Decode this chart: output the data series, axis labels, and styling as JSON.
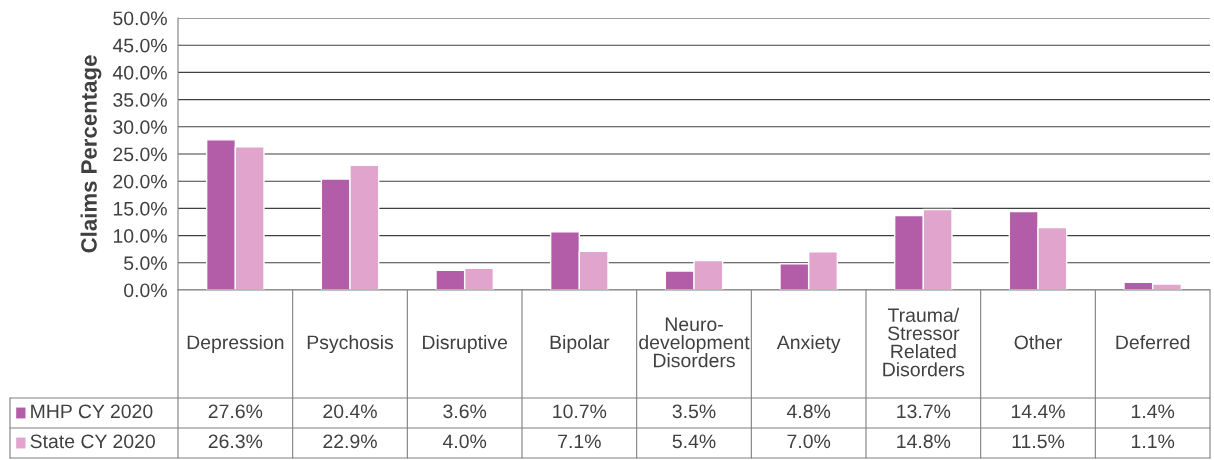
{
  "chart_data": {
    "type": "bar",
    "ylabel": "Claims Percentage",
    "categories": [
      "Depression",
      "Psychosis",
      "Disruptive",
      "Bipolar",
      "Neuro-\ndevelopment\nDisorders",
      "Anxiety",
      "Trauma/\nStressor\nRelated\nDisorders",
      "Other",
      "Deferred"
    ],
    "series": [
      {
        "name": "MHP CY 2020",
        "color": "#b35ca8",
        "values": [
          27.6,
          20.4,
          3.6,
          10.7,
          3.5,
          4.8,
          13.7,
          14.4,
          1.4
        ],
        "value_labels": [
          "27.6%",
          "20.4%",
          "3.6%",
          "10.7%",
          "3.5%",
          "4.8%",
          "13.7%",
          "14.4%",
          "1.4%"
        ]
      },
      {
        "name": "State CY 2020",
        "color": "#e0a4cd",
        "values": [
          26.3,
          22.9,
          4.0,
          7.1,
          5.4,
          7.0,
          14.8,
          11.5,
          1.1
        ],
        "value_labels": [
          "26.3%",
          "22.9%",
          "4.0%",
          "7.1%",
          "5.4%",
          "7.0%",
          "14.8%",
          "11.5%",
          "1.1%"
        ]
      }
    ],
    "ylim": [
      0,
      50
    ],
    "yticks": [
      {
        "value": 0,
        "label": "0.0%"
      },
      {
        "value": 5,
        "label": "5.0%"
      },
      {
        "value": 10,
        "label": "10.0%"
      },
      {
        "value": 15,
        "label": "15.0%"
      },
      {
        "value": 20,
        "label": "20.0%"
      },
      {
        "value": 25,
        "label": "25.0%"
      },
      {
        "value": 30,
        "label": "30.0%"
      },
      {
        "value": 35,
        "label": "35.0%"
      },
      {
        "value": 40,
        "label": "40.0%"
      },
      {
        "value": 45,
        "label": "45.0%"
      },
      {
        "value": 50,
        "label": "50.0%"
      }
    ],
    "grid": "y",
    "legend": "bottom left"
  }
}
